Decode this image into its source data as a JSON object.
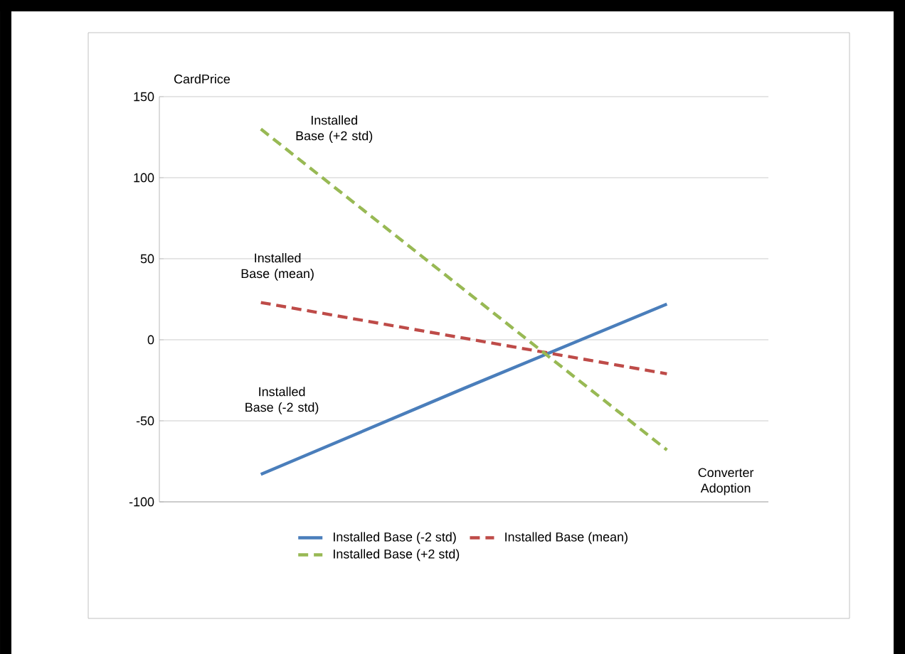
{
  "chart_data": {
    "type": "line",
    "ylabel": "CardPrice",
    "xlabel": "Converter Adoption",
    "categories": [
      null,
      null,
      null
    ],
    "series": [
      {
        "name": "Installed Base (-2 std)",
        "color": "#4a7ebb",
        "values": [
          -83,
          -30,
          22
        ],
        "line_style": "solid"
      },
      {
        "name": "Installed Base (mean)",
        "color": "#be4b48",
        "values": [
          23,
          1,
          -21
        ],
        "line_style": "dashed"
      },
      {
        "name": "Installed Base (+2 std)",
        "color": "#98b954",
        "values": [
          130,
          31,
          -68
        ],
        "line_style": "dashed"
      }
    ],
    "annotations": [
      "Installed Base (+2 std)",
      "Installed Base (mean)",
      "Installed Base (-2 std)"
    ],
    "ylim": [
      -100,
      150
    ],
    "yticks": [
      -100,
      -50,
      0,
      50,
      100,
      150
    ],
    "grid": "y",
    "legend": "bottom",
    "tick_labels": "y",
    "marker": "none"
  }
}
